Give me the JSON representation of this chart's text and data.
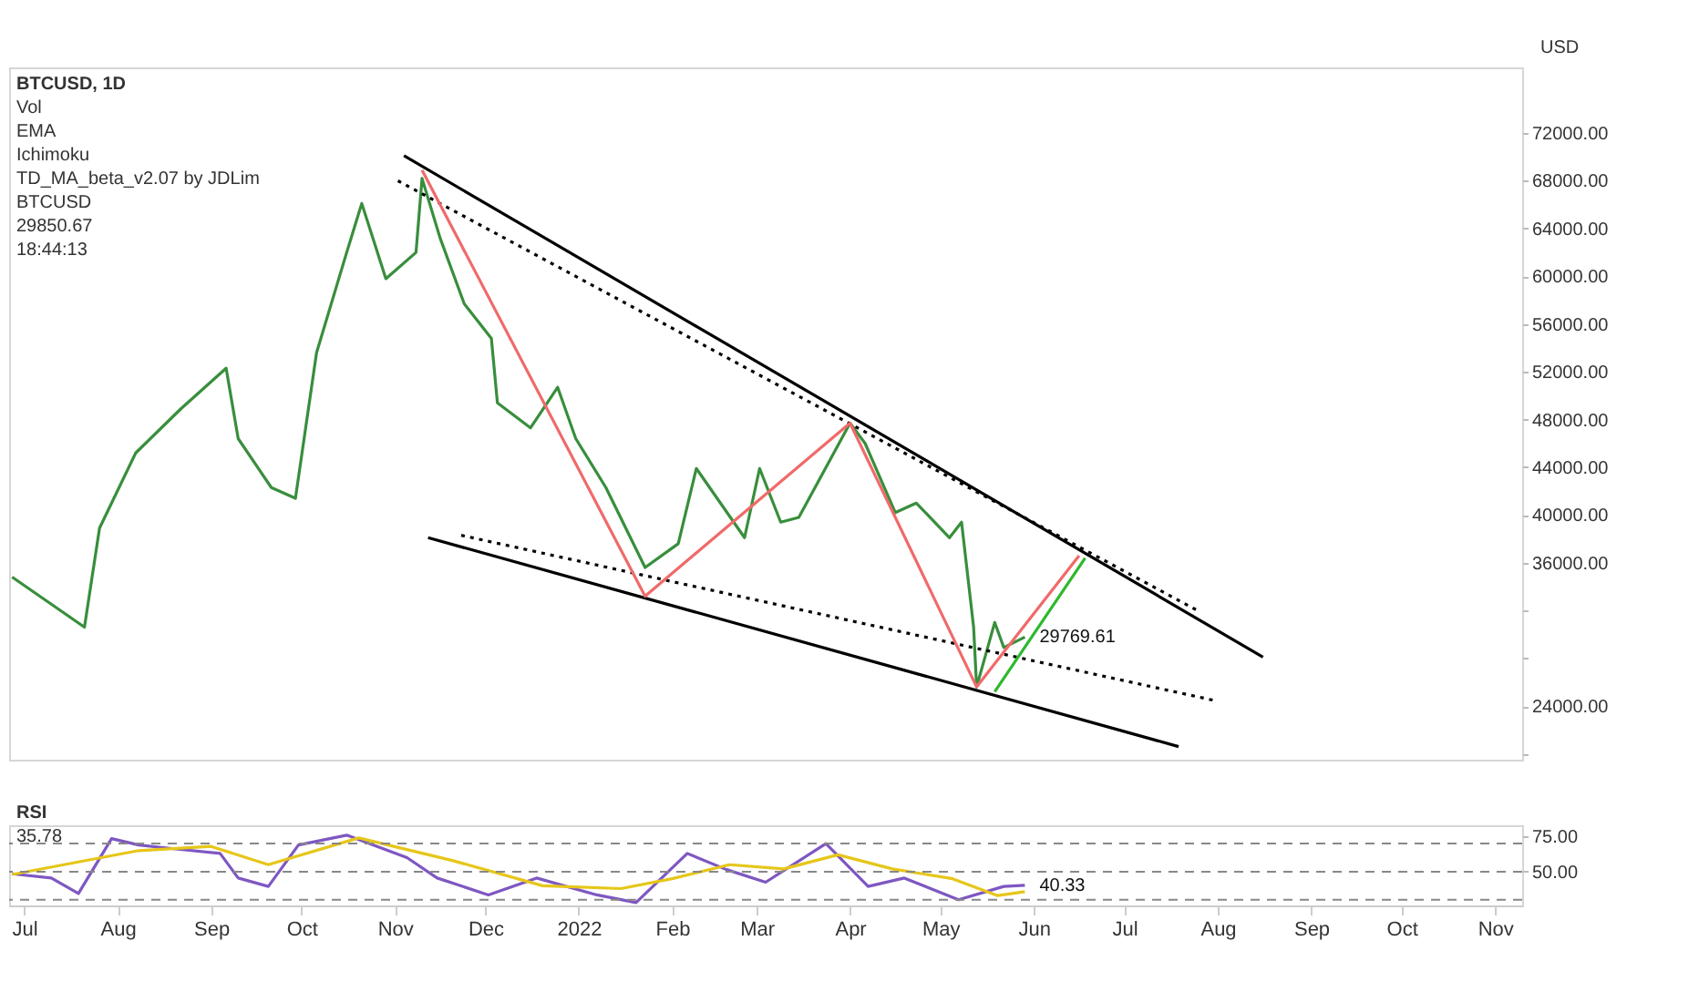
{
  "chart_data": [
    {
      "type": "line",
      "title": "BTCUSD, 1D",
      "ylabel": "USD",
      "tick_labels": "y",
      "annotations": [
        "Vol",
        "EMA",
        "Ichimoku",
        "TD_MA_beta_v2.07 by JDLim",
        "BTCUSD",
        "29850.67",
        "18:44:13",
        {
          "text": "29769.61",
          "x": "2022-05-29",
          "y": 29769.61
        }
      ],
      "xlim": [
        "2021-06-26",
        "2022-11-10"
      ],
      "ylim": [
        19500,
        77500
      ],
      "yticks": [
        {
          "value": 20000,
          "label": null
        },
        {
          "value": 24000,
          "label": "24000.00"
        },
        {
          "value": 28000,
          "label": null
        },
        {
          "value": 32000,
          "label": null
        },
        {
          "value": 36000,
          "label": "36000.00"
        },
        {
          "value": 40000,
          "label": "40000.00"
        },
        {
          "value": 44000,
          "label": "44000.00"
        },
        {
          "value": 48000,
          "label": "48000.00"
        },
        {
          "value": 52000,
          "label": "52000.00"
        },
        {
          "value": 56000,
          "label": "56000.00"
        },
        {
          "value": 60000,
          "label": "60000.00"
        },
        {
          "value": 64000,
          "label": "64000.00"
        },
        {
          "value": 68000,
          "label": "68000.00"
        },
        {
          "value": 72000,
          "label": "72000.00"
        }
      ],
      "series": [
        {
          "color": "#388e3c",
          "x": [
            "2021-06-27",
            "2021-07-21",
            "2021-07-26",
            "2021-08-07",
            "2021-08-22",
            "2021-09-06",
            "2021-09-10",
            "2021-09-21",
            "2021-09-29",
            "2021-10-06",
            "2021-10-16",
            "2021-10-21",
            "2021-10-29",
            "2021-11-08",
            "2021-11-10",
            "2021-11-16",
            "2021-11-24",
            "2021-12-03",
            "2021-12-05",
            "2021-12-16",
            "2021-12-25",
            "2021-12-31",
            "2022-01-10",
            "2022-01-23",
            "2022-02-03",
            "2022-02-09",
            "2022-02-25",
            "2022-03-02",
            "2022-03-09",
            "2022-03-15",
            "2022-04-01",
            "2022-04-06",
            "2022-04-16",
            "2022-04-23",
            "2022-05-04",
            "2022-05-08",
            "2022-05-12",
            "2022-05-13",
            "2022-05-19",
            "2022-05-22",
            "2022-05-29"
          ],
          "values": [
            34800,
            30600,
            38900,
            45200,
            48900,
            52300,
            46400,
            42300,
            41400,
            53600,
            62000,
            66100,
            59800,
            62000,
            68200,
            63200,
            57700,
            54800,
            49400,
            47300,
            50700,
            46400,
            42300,
            35600,
            37600,
            43900,
            38100,
            43900,
            39400,
            39800,
            47700,
            46000,
            40200,
            41000,
            38100,
            39400,
            30600,
            25600,
            31000,
            28900,
            29770
          ]
        },
        {
          "color": "#000000",
          "line_style": "solid",
          "x": [
            "2021-11-04",
            "2022-08-16"
          ],
          "values": [
            70100,
            28100
          ]
        },
        {
          "color": "#000000",
          "line_style": "dotted",
          "x": [
            "2021-11-02",
            "2022-07-26"
          ],
          "values": [
            68000,
            31900
          ]
        },
        {
          "color": "#000000",
          "line_style": "dotted",
          "x": [
            "2021-11-23",
            "2022-08-01"
          ],
          "values": [
            38300,
            24400
          ]
        },
        {
          "color": "#000000",
          "line_style": "solid",
          "x": [
            "2021-11-12",
            "2022-07-19"
          ],
          "values": [
            38100,
            20600
          ]
        },
        {
          "color": "#f06a6a",
          "line_style": "solid",
          "x": [
            "2021-11-10",
            "2022-01-23",
            "2022-04-01",
            "2022-05-13",
            "2022-06-16"
          ],
          "values": [
            68900,
            33200,
            47700,
            25600,
            36600
          ]
        },
        {
          "color": "#2eb82e",
          "line_style": "solid",
          "x": [
            "2022-05-19",
            "2022-06-18"
          ],
          "values": [
            25200,
            36400
          ]
        }
      ]
    },
    {
      "type": "line",
      "title": "RSI",
      "annotations": [
        "35.78",
        {
          "text": "40.33",
          "x": "2022-05-29",
          "y": 40.33
        }
      ],
      "xlim": [
        "2021-06-26",
        "2022-11-10"
      ],
      "xticks": [
        {
          "value": "2021-07-01",
          "label": "Jul"
        },
        {
          "value": "2021-08-01",
          "label": "Aug"
        },
        {
          "value": "2021-09-01",
          "label": "Sep"
        },
        {
          "value": "2021-10-01",
          "label": "Oct"
        },
        {
          "value": "2021-11-01",
          "label": "Nov"
        },
        {
          "value": "2021-12-01",
          "label": "Dec"
        },
        {
          "value": "2022-01-01",
          "label": "2022"
        },
        {
          "value": "2022-02-01",
          "label": "Feb"
        },
        {
          "value": "2022-03-01",
          "label": "Mar"
        },
        {
          "value": "2022-04-01",
          "label": "Apr"
        },
        {
          "value": "2022-05-01",
          "label": "May"
        },
        {
          "value": "2022-06-01",
          "label": "Jun"
        },
        {
          "value": "2022-07-01",
          "label": "Jul"
        },
        {
          "value": "2022-08-01",
          "label": "Aug"
        },
        {
          "value": "2022-09-01",
          "label": "Sep"
        },
        {
          "value": "2022-10-01",
          "label": "Oct"
        },
        {
          "value": "2022-11-01",
          "label": "Nov"
        }
      ],
      "ylim": [
        26,
        83
      ],
      "yticks": [
        {
          "value": 75,
          "label": "75.00"
        },
        {
          "value": 50,
          "label": "50.00"
        }
      ],
      "ref_lines": [
        {
          "axis": "y",
          "value": 70,
          "color": "#888888",
          "line_style": "dashed"
        },
        {
          "axis": "y",
          "value": 50,
          "color": "#888888",
          "line_style": "dashed"
        },
        {
          "axis": "y",
          "value": 30,
          "color": "#888888",
          "line_style": "dashed"
        }
      ],
      "series": [
        {
          "color": "#7e57c2",
          "x": [
            "2021-06-27",
            "2021-07-10",
            "2021-07-19",
            "2021-07-30",
            "2021-08-08",
            "2021-08-21",
            "2021-09-04",
            "2021-09-10",
            "2021-09-20",
            "2021-09-30",
            "2021-10-16",
            "2021-11-05",
            "2021-11-15",
            "2021-12-02",
            "2021-12-18",
            "2022-01-07",
            "2022-01-20",
            "2022-02-06",
            "2022-02-19",
            "2022-03-04",
            "2022-03-24",
            "2022-04-07",
            "2022-04-19",
            "2022-05-07",
            "2022-05-22",
            "2022-05-29"
          ],
          "values": [
            48.5,
            45.5,
            34.5,
            73.5,
            69,
            66,
            63,
            45.5,
            39.5,
            69,
            76,
            60,
            45.5,
            33.5,
            45.5,
            33.5,
            28,
            63,
            51.5,
            42.5,
            70,
            39.5,
            45.5,
            30,
            39.5,
            40.33
          ]
        },
        {
          "color": "#e6c619",
          "x": [
            "2021-06-27",
            "2021-08-08",
            "2021-09-01",
            "2021-09-20",
            "2021-10-20",
            "2021-11-20",
            "2021-12-20",
            "2022-01-15",
            "2022-02-01",
            "2022-02-20",
            "2022-03-10",
            "2022-03-28",
            "2022-04-15",
            "2022-05-05",
            "2022-05-20",
            "2022-05-29"
          ],
          "values": [
            48,
            65,
            68,
            55,
            74,
            58,
            40,
            38,
            45,
            55,
            52,
            62,
            52,
            45,
            33,
            35.78
          ]
        }
      ]
    }
  ]
}
